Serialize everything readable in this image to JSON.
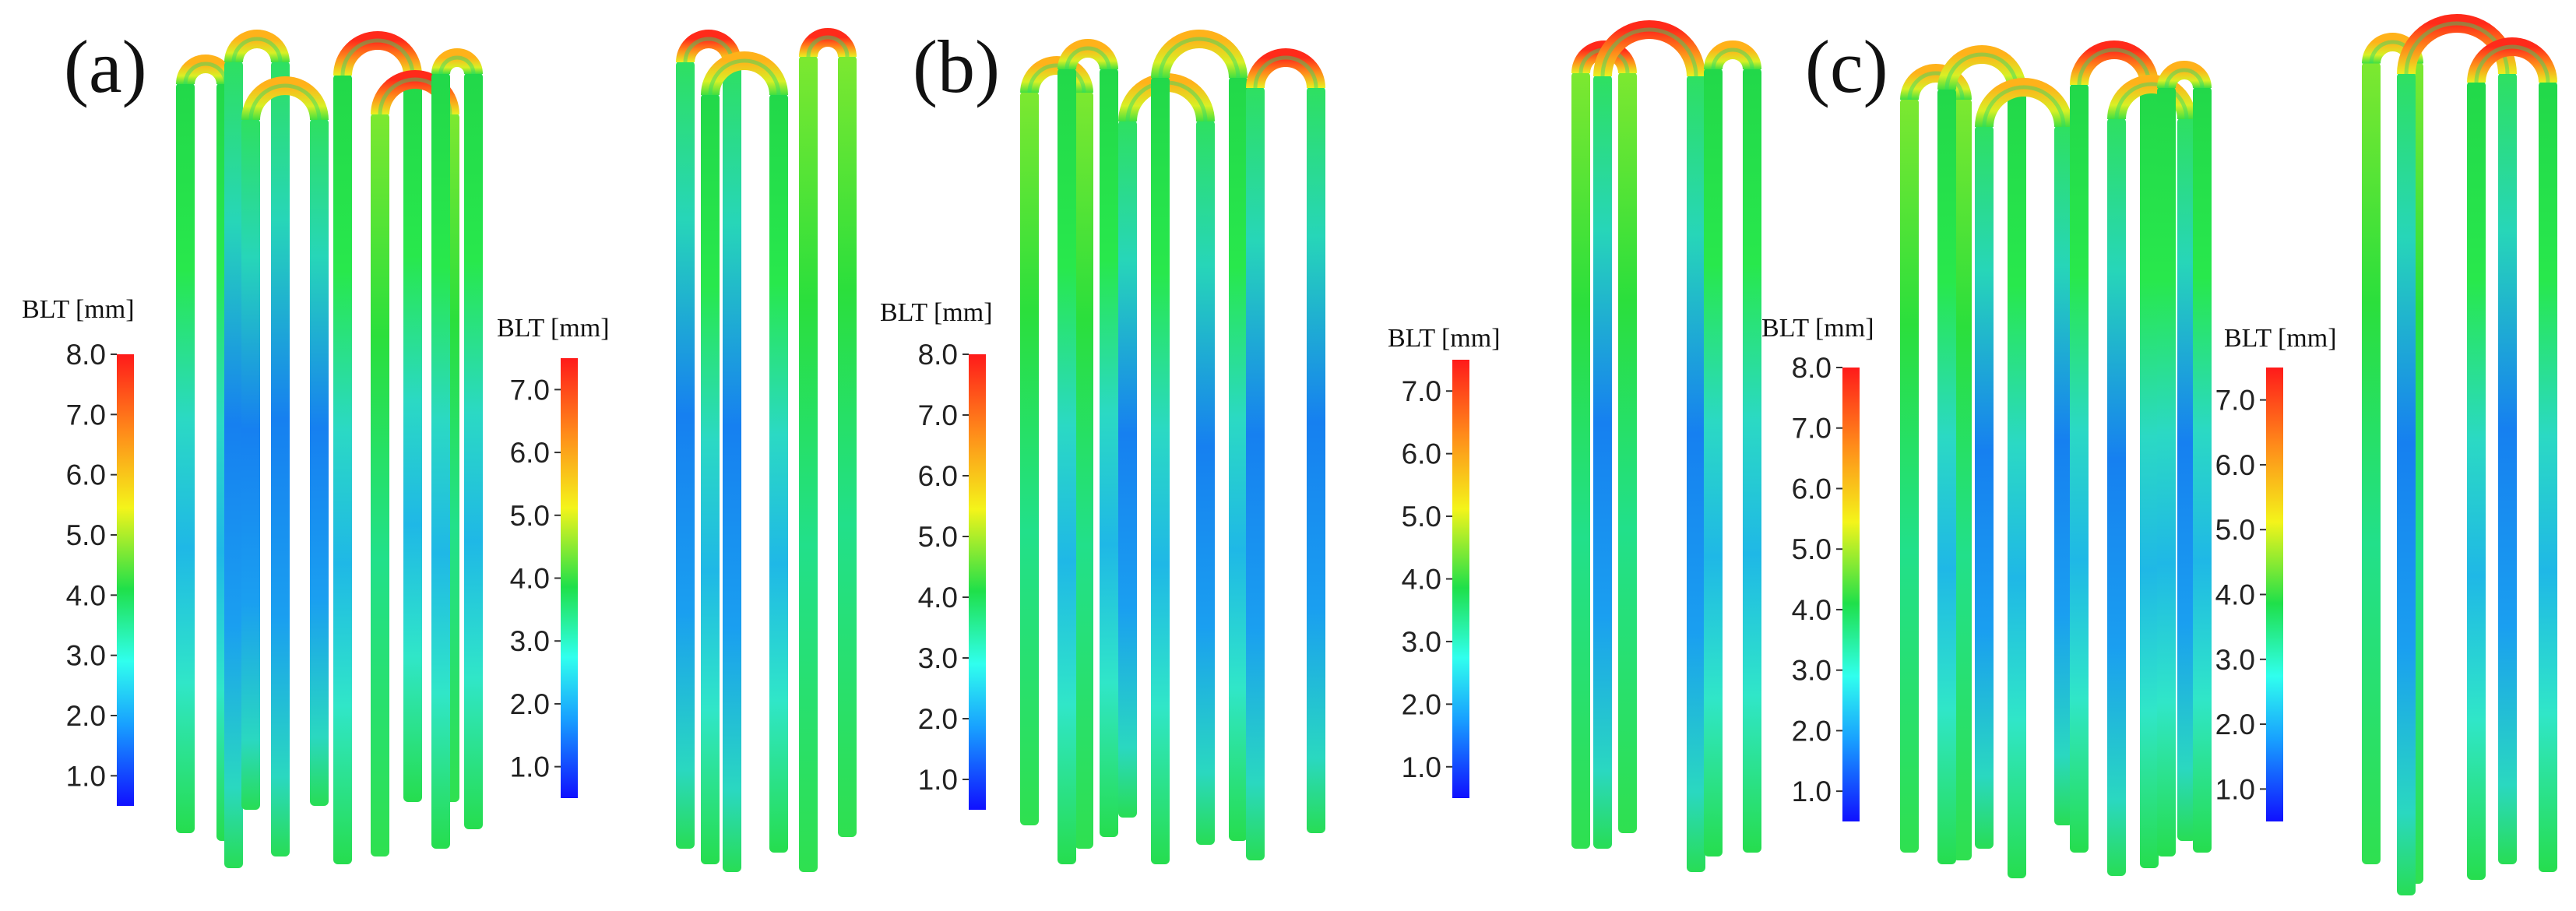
{
  "figure": {
    "panels": [
      {
        "label": "(a)",
        "views": [
          {
            "colorbar": {
              "title": "BLT [mm]",
              "ticks": [
                "1.0",
                "2.0",
                "3.0",
                "4.0",
                "5.0",
                "6.0",
                "7.0",
                "8.0"
              ],
              "min": 0.5,
              "max": 8.0
            }
          },
          {
            "colorbar": {
              "title": "BLT [mm]",
              "ticks": [
                "1.0",
                "2.0",
                "3.0",
                "4.0",
                "5.0",
                "6.0",
                "7.0"
              ],
              "min": 0.5,
              "max": 7.5
            }
          }
        ]
      },
      {
        "label": "(b)",
        "views": [
          {
            "colorbar": {
              "title": "BLT [mm]",
              "ticks": [
                "1.0",
                "2.0",
                "3.0",
                "4.0",
                "5.0",
                "6.0",
                "7.0",
                "8.0"
              ],
              "min": 0.5,
              "max": 8.0
            }
          },
          {
            "colorbar": {
              "title": "BLT [mm]",
              "ticks": [
                "1.0",
                "2.0",
                "3.0",
                "4.0",
                "5.0",
                "6.0",
                "7.0"
              ],
              "min": 0.5,
              "max": 7.5
            }
          }
        ]
      },
      {
        "label": "(c)",
        "views": [
          {
            "colorbar": {
              "title": "BLT [mm]",
              "ticks": [
                "1.0",
                "2.0",
                "3.0",
                "4.0",
                "5.0",
                "6.0",
                "7.0",
                "8.0"
              ],
              "min": 0.5,
              "max": 8.0
            }
          },
          {
            "colorbar": {
              "title": "BLT [mm]",
              "ticks": [
                "1.0",
                "2.0",
                "3.0",
                "4.0",
                "5.0",
                "6.0",
                "7.0"
              ],
              "min": 0.5,
              "max": 7.5
            }
          }
        ]
      }
    ],
    "colors": {
      "low": "#1a1aff",
      "low_mid": "#1aa6ff",
      "mid_low": "#33ffee",
      "mid": "#22e04a",
      "mid_high": "#f2f21a",
      "high_mid": "#ff8c1a",
      "high": "#ff1a1a"
    }
  }
}
